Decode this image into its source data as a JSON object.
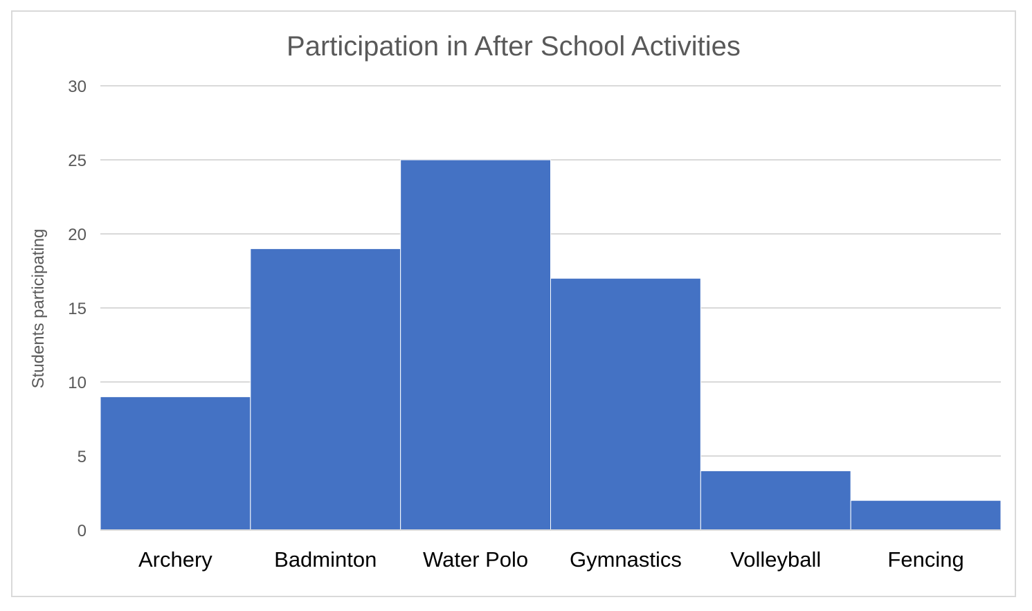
{
  "chart_data": {
    "type": "bar",
    "title": "Participation in After School Activities",
    "xlabel": "",
    "ylabel": "Students participating",
    "categories": [
      "Archery",
      "Badminton",
      "Water Polo",
      "Gymnastics",
      "Volleyball",
      "Fencing"
    ],
    "values": [
      9,
      19,
      25,
      17,
      4,
      2
    ],
    "ylim": [
      0,
      30
    ],
    "yticks": [
      0,
      5,
      10,
      15,
      20,
      25,
      30
    ],
    "grid": true,
    "legend": "none",
    "colors": {
      "bar": "#4472c4",
      "grid": "#d9d9d9",
      "text": "#595959",
      "frame": "#d9d9d9"
    }
  }
}
